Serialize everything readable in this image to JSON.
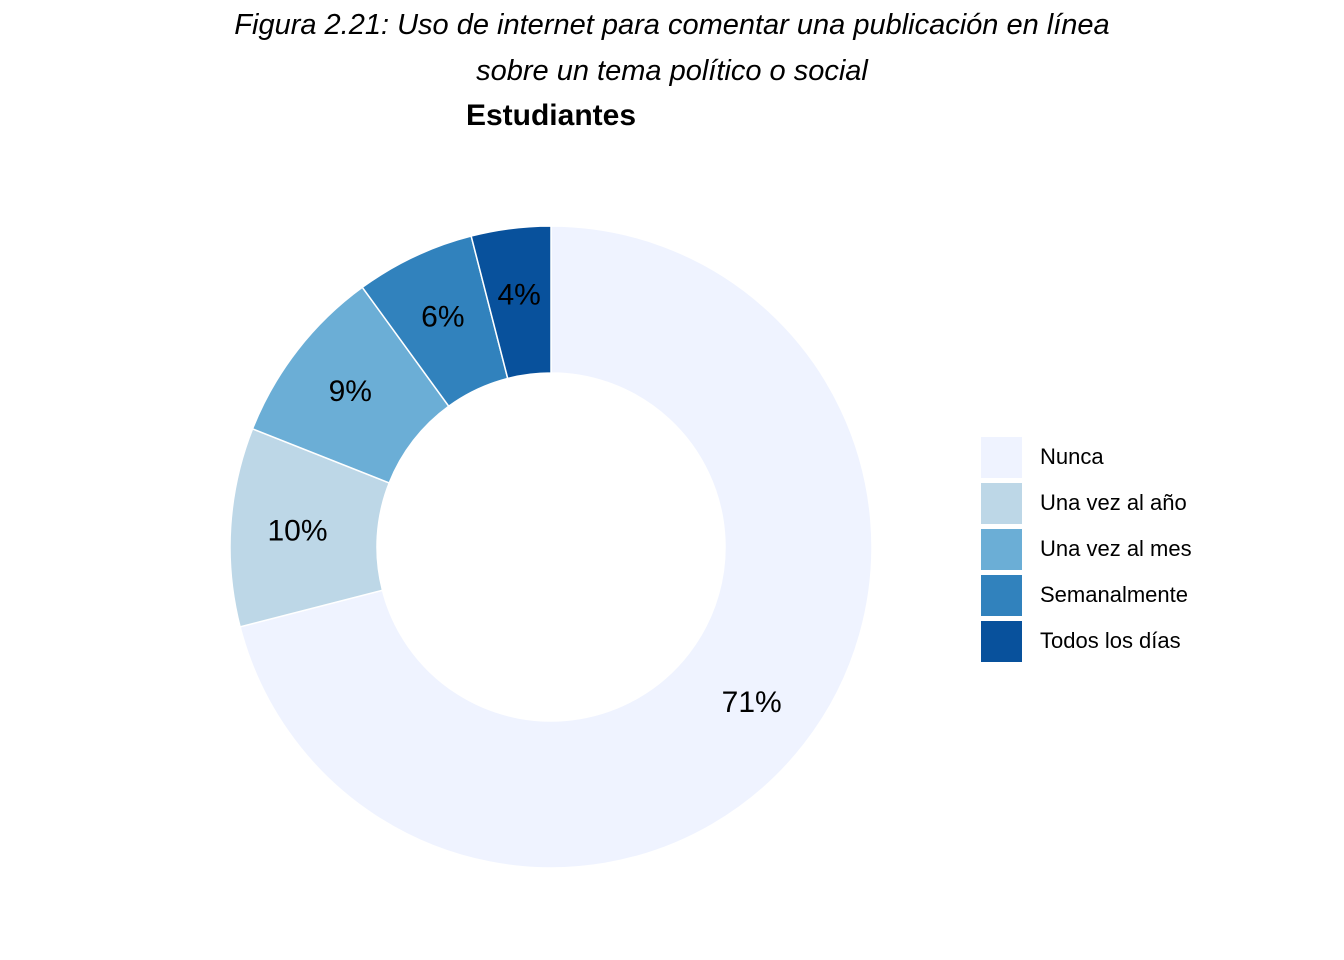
{
  "figure": {
    "title_line1": "Figura 2.21: Uso de internet para comentar una publicación en línea",
    "title_line2": "sobre un tema político o social"
  },
  "chart_data": {
    "type": "pie",
    "subtitle": "Estudiantes",
    "donut": true,
    "start": "top, clockwise",
    "categories": [
      "Nunca",
      "Una vez al año",
      "Una vez al mes",
      "Semanalmente",
      "Todos los días"
    ],
    "values": [
      71,
      10,
      9,
      6,
      4
    ],
    "labels": [
      "71%",
      "10%",
      "9%",
      "6%",
      "4%"
    ],
    "colors": [
      "#eff3ff",
      "#bdd7e7",
      "#6baed6",
      "#3182bd",
      "#08519c"
    ],
    "legend": {
      "position": "right",
      "items": [
        "Nunca",
        "Una vez al año",
        "Una vez al mes",
        "Semanalmente",
        "Todos los días"
      ]
    }
  }
}
